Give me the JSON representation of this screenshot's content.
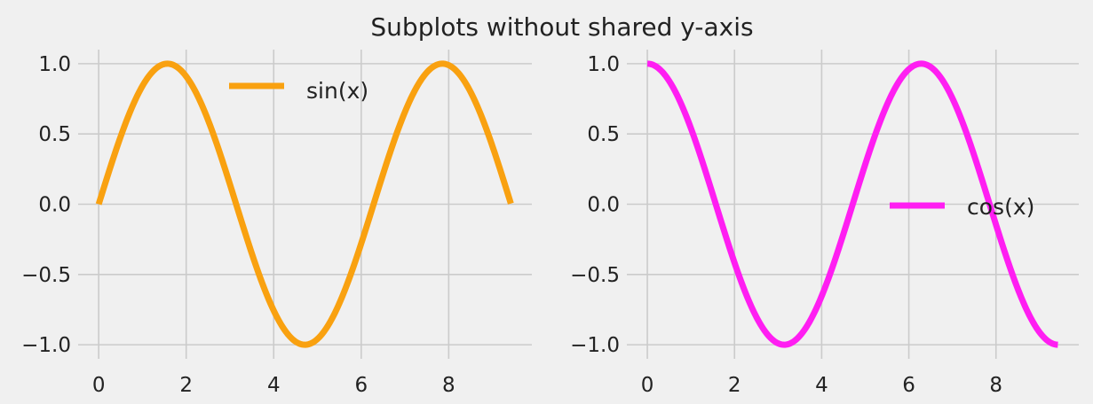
{
  "figure": {
    "title": "Subplots without shared y-axis",
    "background": "#f0f0f0",
    "grid_color": "#cbcbcb",
    "text_color": "#222222"
  },
  "chart_data": [
    {
      "type": "line",
      "function": "sin",
      "title": "",
      "xlabel": "",
      "ylabel": "",
      "xlim": [
        -0.47,
        9.9
      ],
      "ylim": [
        -1.1,
        1.1
      ],
      "xticks": [
        0,
        2,
        4,
        6,
        8
      ],
      "yticks": [
        1.0,
        0.5,
        0.0,
        -0.5,
        -1.0
      ],
      "xtick_labels": [
        "0",
        "2",
        "4",
        "6",
        "8"
      ],
      "ytick_labels": [
        "1.0",
        "0.5",
        "0.0",
        "−0.5",
        "−1.0"
      ],
      "grid": true,
      "legend": "upper center",
      "series": [
        {
          "name": "sin(x)",
          "color": "#f9a110",
          "x": [
            0.0,
            0.3,
            0.6,
            0.9,
            1.2,
            1.5,
            1.8,
            2.1,
            2.4,
            2.7,
            3.0,
            3.3,
            3.6,
            3.9,
            4.2,
            4.5,
            4.8,
            5.1,
            5.4,
            5.7,
            6.0,
            6.3,
            6.6,
            6.9,
            7.2,
            7.5,
            7.8,
            8.1,
            8.4,
            8.7,
            9.0,
            9.3,
            9.42
          ],
          "y": [
            0.0,
            0.296,
            0.565,
            0.783,
            0.932,
            0.997,
            0.974,
            0.863,
            0.675,
            0.427,
            0.141,
            -0.158,
            -0.443,
            -0.688,
            -0.872,
            -0.978,
            -0.996,
            -0.926,
            -0.773,
            -0.551,
            -0.279,
            0.017,
            0.312,
            0.578,
            0.794,
            0.938,
            0.999,
            0.97,
            0.855,
            0.663,
            0.412,
            0.134,
            0.0
          ]
        }
      ]
    },
    {
      "type": "line",
      "function": "cos",
      "title": "",
      "xlabel": "",
      "ylabel": "",
      "xlim": [
        -0.47,
        9.9
      ],
      "ylim": [
        -1.1,
        1.1
      ],
      "xticks": [
        0,
        2,
        4,
        6,
        8
      ],
      "yticks": [
        1.0,
        0.5,
        0.0,
        -0.5,
        -1.0
      ],
      "xtick_labels": [
        "0",
        "2",
        "4",
        "6",
        "8"
      ],
      "ytick_labels": [
        "1.0",
        "0.5",
        "0.0",
        "−0.5",
        "−1.0"
      ],
      "grid": true,
      "legend": "center right",
      "series": [
        {
          "name": "cos(x)",
          "color": "#ff1ef2",
          "x": [
            0.0,
            0.3,
            0.6,
            0.9,
            1.2,
            1.5,
            1.8,
            2.1,
            2.4,
            2.7,
            3.0,
            3.3,
            3.6,
            3.9,
            4.2,
            4.5,
            4.8,
            5.1,
            5.4,
            5.7,
            6.0,
            6.3,
            6.6,
            6.9,
            7.2,
            7.5,
            7.8,
            8.1,
            8.4,
            8.7,
            9.0,
            9.3,
            9.42
          ],
          "y": [
            1.0,
            0.955,
            0.825,
            0.622,
            0.362,
            0.071,
            -0.227,
            -0.505,
            -0.737,
            -0.904,
            -0.99,
            -0.987,
            -0.897,
            -0.726,
            -0.49,
            -0.211,
            0.087,
            0.378,
            0.635,
            0.835,
            0.96,
            1.0,
            0.95,
            0.815,
            0.608,
            0.347,
            0.054,
            -0.243,
            -0.519,
            -0.748,
            -0.911,
            -0.991,
            -1.0
          ]
        }
      ]
    }
  ]
}
